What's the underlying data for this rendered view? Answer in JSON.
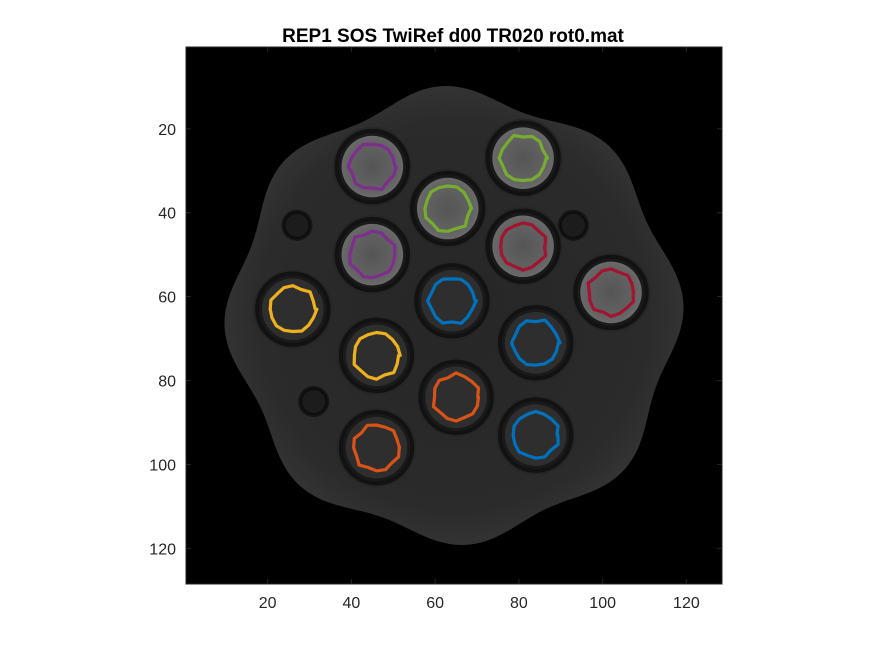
{
  "chart_data": {
    "type": "heatmap",
    "title": "REP1 SOS TwiRef d00 TR020 rot0.mat",
    "xlabel": "",
    "ylabel": "",
    "xlim": [
      0.5,
      128.5
    ],
    "ylim": [
      0.5,
      128.5
    ],
    "y_reversed": true,
    "colormap": "gray",
    "xticks": [
      20,
      40,
      60,
      80,
      100,
      120
    ],
    "yticks": [
      20,
      40,
      60,
      80,
      100,
      120
    ],
    "xtick_labels": [
      "20",
      "40",
      "60",
      "80",
      "100",
      "120"
    ],
    "ytick_labels": [
      "20",
      "40",
      "60",
      "80",
      "100",
      "120"
    ],
    "phantom": {
      "cx": 64.5,
      "cy": 64.5,
      "r": 53
    },
    "holes": [
      {
        "x": 27,
        "y": 43,
        "r": 3
      },
      {
        "x": 93,
        "y": 43,
        "r": 3
      },
      {
        "x": 31,
        "y": 85,
        "r": 3
      }
    ],
    "vials": [
      {
        "x": 45,
        "y": 29,
        "r": 7,
        "fill": "gray",
        "roi": "purple"
      },
      {
        "x": 81,
        "y": 27,
        "r": 7,
        "fill": "gray",
        "roi": "green"
      },
      {
        "x": 63,
        "y": 39,
        "r": 7,
        "fill": "gray",
        "roi": "green"
      },
      {
        "x": 45,
        "y": 50,
        "r": 7,
        "fill": "gray",
        "roi": "purple"
      },
      {
        "x": 81,
        "y": 48,
        "r": 7,
        "fill": "gray",
        "roi": "crimson"
      },
      {
        "x": 102,
        "y": 59,
        "r": 7,
        "fill": "gray",
        "roi": "crimson"
      },
      {
        "x": 26,
        "y": 63,
        "r": 7,
        "fill": "dark",
        "roi": "yellow"
      },
      {
        "x": 64,
        "y": 61,
        "r": 7,
        "fill": "dark",
        "roi": "blue"
      },
      {
        "x": 84,
        "y": 71,
        "r": 7,
        "fill": "dark",
        "roi": "blue"
      },
      {
        "x": 46,
        "y": 74,
        "r": 7,
        "fill": "dark",
        "roi": "yellow"
      },
      {
        "x": 65,
        "y": 84,
        "r": 7,
        "fill": "dark",
        "roi": "orange"
      },
      {
        "x": 84,
        "y": 93,
        "r": 7,
        "fill": "dark",
        "roi": "blue"
      },
      {
        "x": 46,
        "y": 96,
        "r": 7,
        "fill": "dark",
        "roi": "orange"
      }
    ],
    "roi_colors": {
      "purple": "#7e2f8e",
      "green": "#77ac30",
      "crimson": "#a2142f",
      "yellow": "#edb120",
      "blue": "#0072bd",
      "orange": "#d95319"
    },
    "background_color": "#000000",
    "phantom_color": "#2b2b2b",
    "vial_gray_color": "#636363",
    "vial_dark_color": "#2e2e2e"
  }
}
